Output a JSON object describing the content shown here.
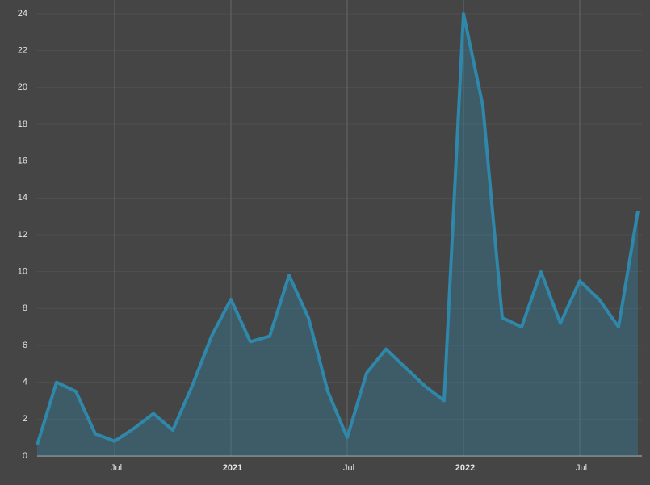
{
  "chart_data": {
    "type": "area",
    "x": [
      "2020-03",
      "2020-04",
      "2020-05",
      "2020-06",
      "2020-07",
      "2020-08",
      "2020-09",
      "2020-10",
      "2020-11",
      "2020-12",
      "2021-01",
      "2021-02",
      "2021-03",
      "2021-04",
      "2021-05",
      "2021-06",
      "2021-07",
      "2021-08",
      "2021-09",
      "2021-10",
      "2021-11",
      "2021-12",
      "2022-01",
      "2022-02",
      "2022-03",
      "2022-04",
      "2022-05",
      "2022-06",
      "2022-07",
      "2022-08",
      "2022-09",
      "2022-10"
    ],
    "values": [
      0.6,
      4.0,
      3.5,
      1.2,
      0.8,
      1.5,
      2.3,
      1.4,
      3.8,
      6.5,
      8.5,
      6.2,
      6.5,
      9.8,
      7.5,
      3.5,
      1.0,
      4.5,
      5.8,
      4.8,
      3.8,
      3.0,
      24.0,
      19.0,
      7.5,
      7.0,
      10.0,
      7.2,
      9.5,
      8.5,
      7.0,
      13.3
    ],
    "color": "#2f87aa",
    "xlim": [
      "2020-03",
      "2022-10"
    ],
    "xticks": [
      {
        "value": "2020-07",
        "label": "Jul"
      },
      {
        "value": "2021-01",
        "label": "2021"
      },
      {
        "value": "2021-07",
        "label": "Jul"
      },
      {
        "value": "2022-01",
        "label": "2022"
      },
      {
        "value": "2022-07",
        "label": "Jul"
      }
    ],
    "ylim": [
      0,
      24
    ],
    "yticks": [
      0,
      2,
      4,
      6,
      8,
      10,
      12,
      14,
      16,
      18,
      20,
      22,
      24
    ],
    "grid": true
  }
}
